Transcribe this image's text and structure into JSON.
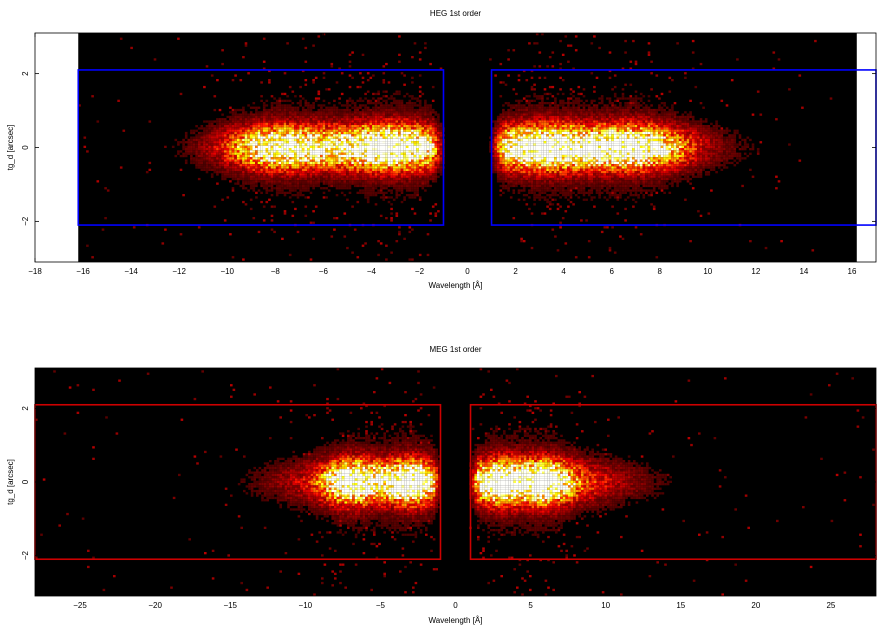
{
  "chart_data": [
    {
      "type": "heatmap",
      "title": "HEG 1st order",
      "xlabel": "Wavelength [Å]",
      "ylabel": "tg_d [arcsec]",
      "xlim": [
        -18,
        17
      ],
      "ylim": [
        -3.1,
        3.1
      ],
      "data_extent_x": [
        -16.2,
        16.2
      ],
      "xticks": [
        -18,
        -16,
        -14,
        -12,
        -10,
        -8,
        -6,
        -4,
        -2,
        0,
        2,
        4,
        6,
        8,
        10,
        12,
        14,
        16
      ],
      "yticks": [
        -2,
        0,
        2
      ],
      "colormap": "hot",
      "emission_peaks_x": [
        -8,
        -3,
        3,
        7
      ],
      "extraction_boxes": {
        "color": "#0000ff",
        "y_range": [
          -2.1,
          2.1
        ],
        "regions": [
          [
            -16.2,
            -1.0
          ],
          [
            1.0,
            17.0
          ]
        ]
      }
    },
    {
      "type": "heatmap",
      "title": "MEG 1st order",
      "xlabel": "Wavelength [Å]",
      "ylabel": "tg_d [arcsec]",
      "xlim": [
        -28,
        28
      ],
      "ylim": [
        -3.1,
        3.1
      ],
      "xticks": [
        -25,
        -20,
        -15,
        -10,
        -5,
        0,
        5,
        10,
        15,
        20,
        25
      ],
      "yticks": [
        -2,
        0,
        2
      ],
      "colormap": "hot",
      "emission_peaks_x": [
        -7,
        -3,
        3,
        6
      ],
      "extraction_boxes": {
        "color": "#cc0000",
        "y_range": [
          -2.1,
          2.1
        ],
        "regions": [
          [
            -28,
            -1.0
          ],
          [
            1.0,
            28
          ]
        ]
      }
    }
  ]
}
